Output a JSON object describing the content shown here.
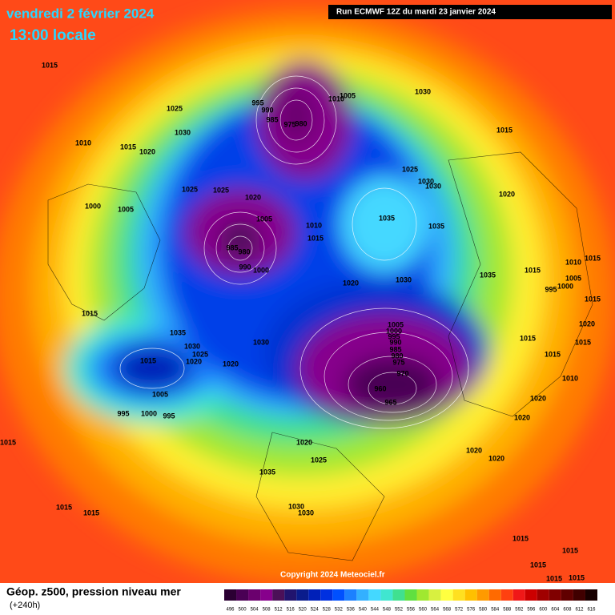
{
  "header": {
    "title": "vendredi 2 février 2024",
    "time": "13:00 locale",
    "run": "Run ECMWF 12Z du mardi 23 janvier 2024"
  },
  "footer": {
    "caption": "Géop. z500, pression niveau mer",
    "step": "(+240h)",
    "copyright": "Copyright 2024 Meteociel.fr"
  },
  "legend": {
    "values": [
      496,
      500,
      504,
      508,
      512,
      516,
      520,
      524,
      528,
      532,
      536,
      540,
      544,
      548,
      552,
      556,
      560,
      564,
      568,
      572,
      576,
      580,
      584,
      588,
      592,
      596,
      600,
      604,
      608,
      612,
      616
    ],
    "colors": [
      "#2b0033",
      "#4a0054",
      "#6b006e",
      "#87008c",
      "#4c1058",
      "#21146e",
      "#0a1c8c",
      "#0020b8",
      "#0030e0",
      "#0050ff",
      "#1c80ff",
      "#33b0ff",
      "#44d8ff",
      "#40e6d0",
      "#40e090",
      "#60e040",
      "#a0e830",
      "#d8f040",
      "#ffff40",
      "#ffe020",
      "#ffc000",
      "#ff9a00",
      "#ff6a00",
      "#ff4010",
      "#f01818",
      "#cc0000",
      "#a00000",
      "#800000",
      "#600000",
      "#400000",
      "#180000"
    ]
  },
  "pressure_labels": [
    1015,
    1025,
    1030,
    1010,
    1015,
    1020,
    995,
    990,
    985,
    975,
    980,
    1010,
    1005,
    1030,
    1015,
    1025,
    1030,
    1030,
    1020,
    1025,
    1025,
    1020,
    1000,
    1005,
    1005,
    1010,
    1015,
    1035,
    1035,
    985,
    980,
    990,
    1000,
    1020,
    1030,
    1035,
    1015,
    1010,
    1015,
    1005,
    1000,
    995,
    1015,
    1035,
    1005,
    1000,
    995,
    990,
    985,
    980,
    975,
    970,
    960,
    965,
    1015,
    1015,
    1015,
    1020,
    1015,
    1010,
    1020,
    1020,
    1030,
    1025,
    1020,
    1020,
    1030,
    1015,
    1005,
    995,
    1000,
    995,
    1015,
    1020,
    1025,
    1020,
    1020,
    1035,
    1015,
    1015,
    1030,
    1030,
    1015,
    1015,
    1015,
    1015,
    1015
  ]
}
